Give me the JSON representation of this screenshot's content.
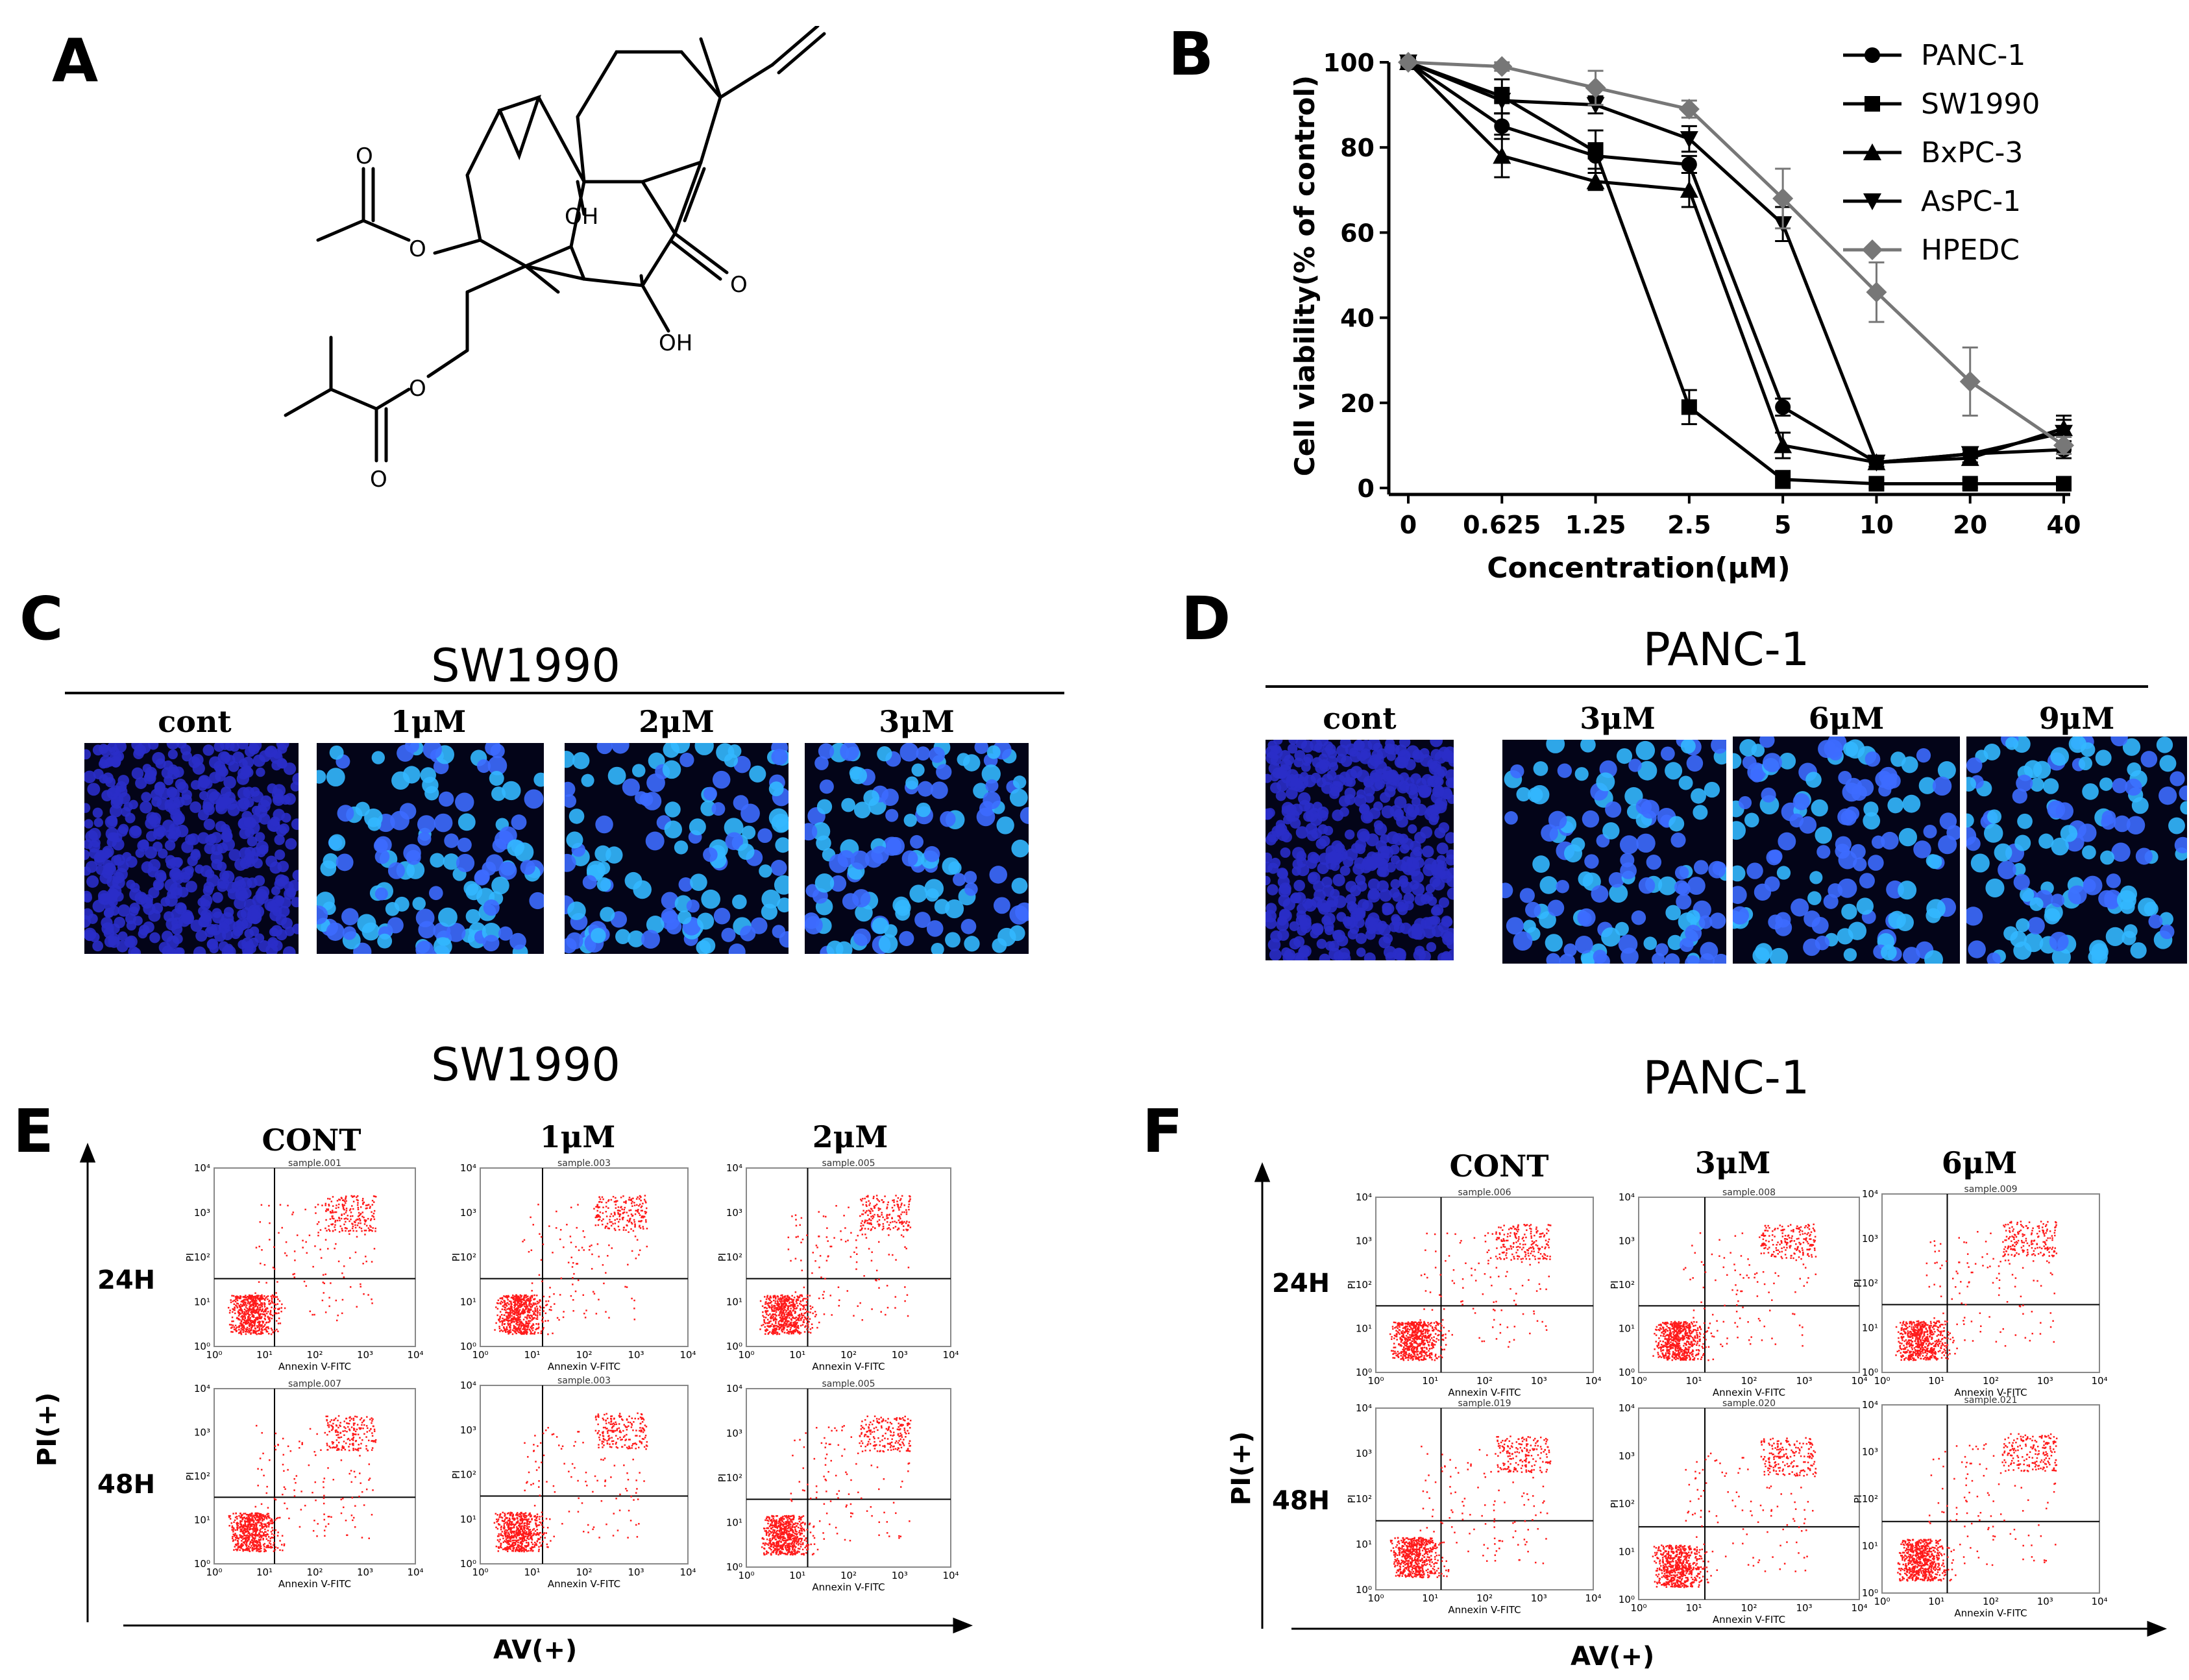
{
  "panels": {
    "A": "A",
    "B": "B",
    "C": "C",
    "D": "D",
    "E": "E",
    "F": "F"
  },
  "molecule": {
    "oh_top": "OH",
    "oh_bottom": "OH",
    "carbonyl_o": "O",
    "ester_o1": "O",
    "ester_o2": "O",
    "ring_o1": "O",
    "ring_o2": "O"
  },
  "chart_data": {
    "type": "line",
    "xlabel": "Concentration(μM)",
    "ylabel": "Cell viability(% of control)",
    "categories": [
      "0",
      "0.625",
      "1.25",
      "2.5",
      "5",
      "10",
      "20",
      "40"
    ],
    "yticks": [
      "0",
      "20",
      "40",
      "60",
      "80",
      "100"
    ],
    "ylim": [
      0,
      100
    ],
    "legend_position": "top-right",
    "series": [
      {
        "name": "PANC-1",
        "marker": "circle",
        "color": "#000000",
        "values": [
          100,
          85,
          78,
          76,
          19,
          6,
          8,
          9
        ],
        "errors": [
          0,
          3,
          3,
          2,
          2,
          1,
          1,
          2
        ]
      },
      {
        "name": "SW1990",
        "marker": "square",
        "color": "#000000",
        "values": [
          100,
          92,
          79,
          19,
          2,
          1,
          1,
          1
        ],
        "errors": [
          0,
          4,
          5,
          4,
          2,
          1,
          1,
          1
        ]
      },
      {
        "name": "BxPC-3",
        "marker": "triangle-up",
        "color": "#000000",
        "values": [
          100,
          78,
          72,
          70,
          10,
          6,
          7,
          14
        ],
        "errors": [
          0,
          5,
          2,
          4,
          3,
          1,
          1,
          2
        ]
      },
      {
        "name": "AsPC-1",
        "marker": "triangle-down",
        "color": "#000000",
        "values": [
          100,
          91,
          90,
          82,
          62,
          6,
          8,
          13
        ],
        "errors": [
          0,
          3,
          2,
          3,
          4,
          1,
          1,
          4
        ]
      },
      {
        "name": "HPEDC",
        "marker": "diamond",
        "color": "#777777",
        "values": [
          100,
          99,
          94,
          89,
          68,
          46,
          25,
          10
        ],
        "errors": [
          0,
          1,
          4,
          2,
          7,
          7,
          8,
          2
        ]
      }
    ]
  },
  "panel_c": {
    "title": "SW1990",
    "labels": [
      "cont",
      "1μM",
      "2μM",
      "3μM"
    ]
  },
  "panel_d": {
    "title": "PANC-1",
    "labels": [
      "cont",
      "3μM",
      "6μM",
      "9μM"
    ]
  },
  "panel_e": {
    "title": "SW1990",
    "cols": [
      "CONT",
      "1μM",
      "2μM"
    ],
    "rows": [
      "24H",
      "48H"
    ],
    "yaxis": "PI(+)",
    "xaxis": "AV(+)",
    "samples": [
      "sample.001",
      "sample.003",
      "sample.005",
      "sample.007",
      "sample.003",
      "sample.005"
    ],
    "plot_x": "Annexin V-FITC",
    "plot_y": "PI"
  },
  "panel_f": {
    "title": "PANC-1",
    "cols": [
      "CONT",
      "3μM",
      "6μM"
    ],
    "rows": [
      "24H",
      "48H"
    ],
    "yaxis": "PI(+)",
    "xaxis": "AV(+)",
    "samples": [
      "sample.006",
      "sample.008",
      "sample.009",
      "sample.019",
      "sample.020",
      "sample.021"
    ],
    "plot_x": "Annexin V-FITC",
    "plot_y": "PI"
  },
  "flow_ticks": [
    "10⁰",
    "10¹",
    "10²",
    "10³",
    "10⁴"
  ]
}
